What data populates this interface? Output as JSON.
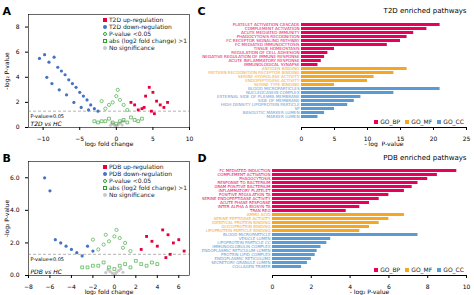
{
  "chart_data": [
    {
      "type": "scatter",
      "panel_label": "A",
      "subtitle": "T2D vs HC",
      "xlabel": "log₂ fold change",
      "ylabel": "-log₂ P-value",
      "xlim": [
        -12,
        10
      ],
      "ylim": [
        0,
        9
      ],
      "xticks": [
        -10,
        -5,
        0,
        5,
        10
      ],
      "yticks": [
        0,
        2,
        4,
        6,
        8
      ],
      "legend": "upper right",
      "reference_line": {
        "y": 1.301,
        "label": "P-value=0.05",
        "line_style": "dashed"
      },
      "series": [
        {
          "name": "T2D up-regulation",
          "color": "#e8003d",
          "marker": "square",
          "x": [
            4.5,
            5.0,
            5.5,
            6.0,
            4.0,
            3.5,
            7.0,
            6.5,
            3.0,
            2.5,
            4.8,
            5.2,
            3.8,
            2.0
          ],
          "values": [
            3.2,
            2.8,
            2.1,
            1.8,
            2.5,
            1.5,
            2.0,
            1.6,
            1.4,
            1.8,
            1.3,
            1.1,
            1.6,
            2.0
          ]
        },
        {
          "name": "T2D down-regulation",
          "color": "#4472c4",
          "marker": "circle",
          "x": [
            -10.5,
            -9.8,
            -9.2,
            -8.5,
            -8.0,
            -7.5,
            -7.0,
            -6.5,
            -6.0,
            -5.5,
            -5.0,
            -4.5,
            -4.0,
            -3.5,
            -3.0,
            -2.5,
            -9.5,
            -8.8,
            -7.8,
            -6.8,
            -5.8,
            -4.8,
            -3.8
          ],
          "values": [
            5.5,
            5.8,
            5.2,
            5.6,
            4.8,
            4.5,
            4.2,
            3.8,
            3.5,
            3.2,
            2.8,
            2.5,
            2.2,
            1.8,
            1.5,
            1.3,
            4.0,
            3.5,
            3.0,
            2.6,
            2.0,
            1.6,
            1.4
          ]
        },
        {
          "name": "P-value <0.05",
          "color": "#2ca02c",
          "marker": "circle-open",
          "x": [
            -1.5,
            -1.0,
            -0.5,
            0.0,
            0.5,
            1.0,
            1.5,
            -2.0,
            0.2
          ],
          "values": [
            1.5,
            1.8,
            2.0,
            2.5,
            2.2,
            1.8,
            1.4,
            2.1,
            3.0
          ]
        },
        {
          "name": "abs (log2 fold change) >1",
          "color": "#2ca02c",
          "marker": "square-open",
          "x": [
            -0.5,
            0.0,
            0.5,
            1.0,
            -1.0,
            1.5,
            2.0,
            -1.5,
            2.5,
            -2.0,
            3.0,
            -2.5,
            3.5,
            -3.0
          ],
          "values": [
            0.4,
            0.3,
            0.5,
            0.6,
            0.7,
            0.4,
            0.8,
            0.5,
            0.6,
            0.5,
            0.5,
            0.4,
            0.7,
            0.5
          ]
        },
        {
          "name": "No significance",
          "color": "#c8c8c8",
          "marker": "circle",
          "x": [
            0.0,
            0.2,
            -0.2,
            0.4,
            -0.4,
            0.6,
            -0.6,
            0.8,
            -0.8,
            1.0
          ],
          "values": [
            0.1,
            0.2,
            0.15,
            0.3,
            0.25,
            0.4,
            0.35,
            0.2,
            0.18,
            0.5
          ]
        }
      ]
    },
    {
      "type": "scatter",
      "panel_label": "B",
      "subtitle": "PDB vs HC",
      "xlabel": "log₂ fold change",
      "ylabel": "-log₂ P-value",
      "xlim": [
        -8,
        7
      ],
      "ylim": [
        0,
        7
      ],
      "xticks": [
        -8,
        -6,
        -4,
        -2,
        0,
        2,
        4,
        6
      ],
      "yticks": [
        0,
        2,
        4,
        6
      ],
      "legend": "upper right",
      "reference_line": {
        "y": 1.301,
        "label": "P-value=0.05",
        "line_style": "dashed"
      },
      "series": [
        {
          "name": "PDB up-regulation",
          "color": "#e8003d",
          "marker": "square",
          "x": [
            5.0,
            5.5,
            4.5,
            6.0,
            4.0,
            3.5,
            6.5,
            3.0,
            2.5,
            5.2,
            4.8
          ],
          "values": [
            2.5,
            2.0,
            2.8,
            2.2,
            1.8,
            2.1,
            1.5,
            2.4,
            1.6,
            1.3,
            1.1
          ]
        },
        {
          "name": "PDB down-regulation",
          "color": "#4472c4",
          "marker": "circle",
          "x": [
            -6.5,
            -6.0,
            -5.5,
            -5.0,
            -4.5,
            -4.0,
            -3.5,
            -3.0,
            -2.5,
            -2.0
          ],
          "values": [
            6.0,
            5.2,
            2.2,
            2.0,
            1.8,
            1.6,
            1.4,
            1.2,
            1.8,
            1.5
          ]
        },
        {
          "name": "P-value <0.05",
          "color": "#2ca02c",
          "marker": "circle-open",
          "x": [
            -1.5,
            -1.0,
            -0.5,
            0.0,
            0.5,
            1.0,
            1.5,
            -2.0,
            0.2,
            -0.8,
            0.8
          ],
          "values": [
            1.6,
            1.9,
            2.1,
            2.4,
            2.3,
            2.0,
            1.5,
            2.2,
            2.8,
            2.5,
            1.7
          ]
        },
        {
          "name": "abs (log2 fold change) >1",
          "color": "#2ca02c",
          "marker": "square-open",
          "x": [
            -0.5,
            0.0,
            0.5,
            1.0,
            -1.0,
            1.5,
            2.0,
            -1.5,
            2.5,
            -2.0,
            3.0,
            3.5,
            -2.5,
            4.0,
            -3.0
          ],
          "values": [
            0.5,
            0.4,
            0.6,
            0.7,
            0.8,
            0.5,
            0.9,
            0.6,
            0.7,
            0.6,
            0.6,
            0.8,
            0.5,
            0.7,
            0.5
          ]
        },
        {
          "name": "No significance",
          "color": "#c8c8c8",
          "marker": "circle",
          "x": [
            0.0,
            0.2,
            -0.2,
            0.4,
            -0.4,
            0.6,
            -0.6,
            0.8,
            -0.8,
            0.1
          ],
          "values": [
            0.1,
            0.2,
            0.15,
            0.3,
            0.25,
            0.4,
            0.35,
            0.2,
            0.18,
            0.1
          ]
        }
      ]
    },
    {
      "type": "bar",
      "orientation": "horizontal",
      "panel_label": "C",
      "title": "T2D enriched pathways",
      "xlabel": "- log  P-value",
      "xlim": [
        0,
        25
      ],
      "xticks": [
        0,
        5,
        10,
        15,
        20,
        25
      ],
      "legend": "lower right",
      "categories": [
        "PLATELET ACTIVATION CASCADE",
        "COMPLEMENT ACTIVATION",
        "ACUTE MEDIATED IMMUNITY",
        "PHAGOCYTOSIS RECOGNITION",
        "FC RECEPTOR SIGNALING PATHWAY",
        "FC MEDIATED IMMUNOCYTOSIS",
        "TISSUE HOMEOSTASIS",
        "REGULATION OF CELL ADHESION",
        "NEGATIVE REGULATION OF IMMUNE RESPONSE",
        "ACUTE INFLAMMATORY RESPONSE",
        "IMMUNOLOGICAL SYNAPSE",
        "ANTIGEN BINDING",
        "PATTERN RECOGNITION RECEPTOR BINDING",
        "SERINE HYDROLASE ACTIVITY",
        "ENDOPEPTIDASE ACTIVITY",
        "SERINE TYPE BINDING",
        "BLOOD MICROPARTICLES",
        "NUCLEOCASEIN COMPLEX",
        "EXTERNAL SIDE OF PLASMA MEMBRANE",
        "SIDE OF MEMBRANE",
        "HIGH DENSITY LIPOPROTEIN PARTICLE",
        "SP",
        "BASOLYTIC MARKER LUMEN",
        "MARKER LUMEN"
      ],
      "series": [
        {
          "name": "GO_BP",
          "color": "#e8005a",
          "values": [
            21,
            19,
            17,
            16,
            15,
            13,
            5,
            4,
            3.5,
            3,
            2.5,
            null,
            null,
            null,
            null,
            null,
            null,
            null,
            null,
            null,
            null,
            null,
            null,
            null
          ]
        },
        {
          "name": "GO_MF",
          "color": "#f5a623",
          "values": [
            null,
            null,
            null,
            null,
            null,
            null,
            null,
            null,
            null,
            null,
            null,
            16,
            14,
            11,
            10,
            5,
            null,
            null,
            null,
            null,
            null,
            null,
            null,
            null
          ]
        },
        {
          "name": "GO_CC",
          "color": "#5b9bd5",
          "values": [
            null,
            null,
            null,
            null,
            null,
            null,
            null,
            null,
            null,
            null,
            null,
            null,
            null,
            null,
            null,
            null,
            21,
            14,
            9,
            8,
            7,
            5,
            3.5,
            2.5
          ]
        }
      ]
    },
    {
      "type": "bar",
      "orientation": "horizontal",
      "panel_label": "D",
      "title": "PDB enriched pathways",
      "xlabel": "- log₂ P-value",
      "xlim": [
        0,
        10
      ],
      "xticks": [
        0,
        2,
        4,
        6,
        8,
        10
      ],
      "legend": "lower right",
      "categories": [
        "FC MEDIATED INDUCTION",
        "COMPLEMENT ACTIVATION",
        "PHAGOCYTOSIS",
        "RESPONSE TO BACTERIUM",
        "GRAM POSITIVE BACTERIUM",
        "INFLAMMATORY PLATELET",
        "POSITIVE REGULATION TA",
        "SERINE ENDOPEPTIDASE ACTIVITY",
        "ACUTE PHASE RESPONSE",
        "INTER ALPHA A BIOSYN TA",
        "TRAN REG",
        "AMMO ACID",
        "SERINE PEPTIDASE ACTIVITY",
        "IDENTICAL PROTEIN BINDING",
        "GLYCOPROTEIN BINDING",
        "LIPOPROTEIN PARTICLE BINDING",
        "BLOOD MICROPARTICLE",
        "VESICLE LUMEN",
        "LIPOPROTEIN PARTICLE CC",
        "IMMUNOGLOBULIN COMPLEX",
        "ENDOPLASMIC RETICULUM LUMEN",
        "PROTEIN LIPID COMPLEX",
        "ENDOPLASMIC RETICULUM2",
        "SECRETORY GRANULE LUMEN",
        "COLLAGEN TRIMER"
      ],
      "series": [
        {
          "name": "GO_BP",
          "color": "#e8005a",
          "values": [
            9.5,
            8.5,
            8.0,
            7.5,
            7.2,
            6.8,
            6.0,
            5.5,
            5.0,
            4.5,
            3.8,
            null,
            null,
            null,
            null,
            null,
            null,
            null,
            null,
            null,
            null,
            null,
            null,
            null,
            null
          ]
        },
        {
          "name": "GO_MF",
          "color": "#f5a623",
          "values": [
            null,
            null,
            null,
            null,
            null,
            null,
            null,
            null,
            null,
            null,
            null,
            6.8,
            6.0,
            5.5,
            5.0,
            4.5,
            null,
            null,
            null,
            null,
            null,
            null,
            null,
            null,
            null
          ]
        },
        {
          "name": "GO_CC",
          "color": "#5b9bd5",
          "values": [
            null,
            null,
            null,
            null,
            null,
            null,
            null,
            null,
            null,
            null,
            null,
            null,
            null,
            null,
            null,
            null,
            7.5,
            3.0,
            2.8,
            2.5,
            2.3,
            2.2,
            2.0,
            1.8,
            1.5
          ]
        }
      ]
    }
  ]
}
